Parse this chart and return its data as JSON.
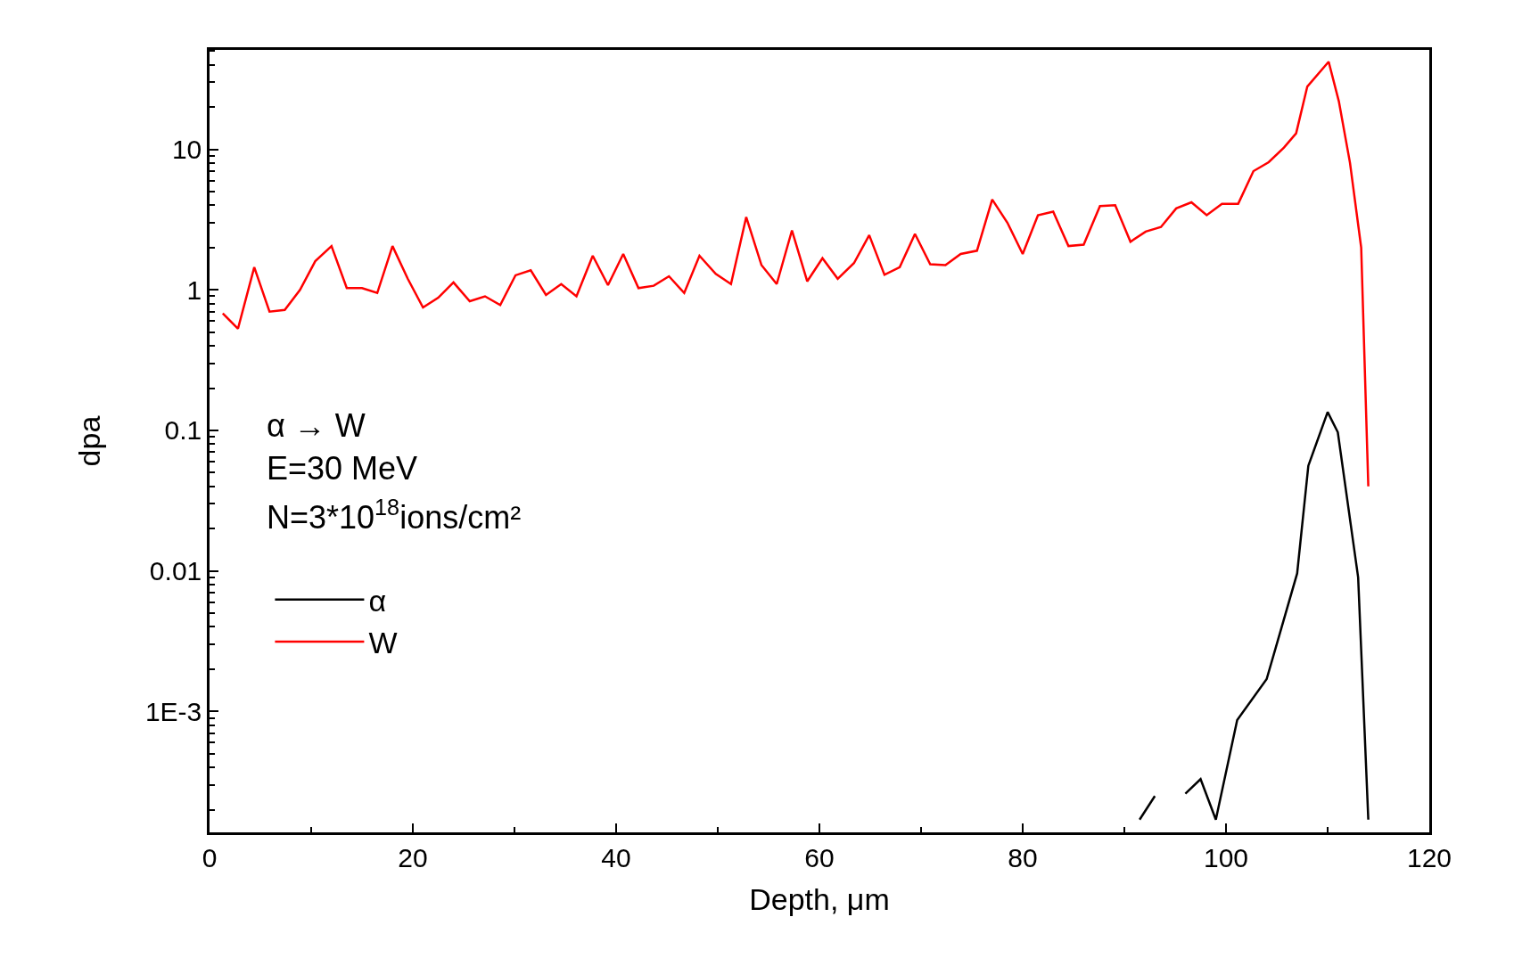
{
  "chart_data": {
    "type": "line",
    "xlabel": "Depth, μm",
    "ylabel": "dpa",
    "annotations": [
      "α → W",
      "E=30 MeV",
      "N=3*10$^{18}$ions/cm²"
    ],
    "log": "y",
    "xlim": [
      0,
      120
    ],
    "xticks": [
      0,
      20,
      40,
      60,
      80,
      100,
      120
    ],
    "ylim": [
      0.000138,
      51
    ],
    "yticks": [
      {
        "value": 0.001,
        "label": "1E-3"
      },
      0.01,
      0.1,
      1,
      10
    ],
    "legend": "left",
    "marker": "none",
    "line_style": "solid",
    "series": [
      {
        "name": "α",
        "color": "#000000",
        "x": [
          91.5,
          93.0,
          94.5,
          96.0,
          97.5,
          99.0,
          101.1,
          104.0,
          105.1,
          107.0,
          108.1,
          110.0,
          111.0,
          113.0,
          114.0
        ],
        "values": [
          0.00017,
          0.00025,
          null,
          0.00026,
          0.00033,
          0.00017,
          0.00087,
          0.0017,
          0.0032,
          0.0096,
          0.056,
          0.135,
          0.097,
          0.009,
          0.00017
        ]
      },
      {
        "name": "W",
        "color": "#ff0000",
        "x": [
          1.3,
          2.8,
          4.4,
          5.9,
          7.4,
          8.9,
          10.4,
          12.0,
          13.5,
          15.0,
          16.5,
          18.0,
          19.5,
          21.0,
          22.5,
          24.0,
          25.6,
          27.1,
          28.6,
          30.1,
          31.6,
          33.1,
          34.6,
          36.1,
          37.7,
          39.2,
          40.7,
          42.2,
          43.7,
          45.2,
          46.7,
          48.2,
          49.8,
          51.3,
          52.8,
          54.3,
          55.8,
          57.3,
          58.8,
          60.3,
          61.8,
          63.4,
          64.9,
          66.4,
          67.9,
          69.4,
          70.9,
          72.4,
          73.9,
          75.5,
          77.0,
          78.5,
          80.0,
          81.5,
          83.0,
          84.5,
          86.0,
          87.6,
          89.1,
          90.6,
          92.1,
          93.6,
          95.1,
          96.6,
          98.1,
          99.6,
          101.2,
          102.7,
          104.2,
          105.7,
          106.9,
          108.0,
          110.1,
          111.1,
          112.2,
          113.3,
          114.0
        ],
        "values": [
          0.68,
          0.53,
          1.45,
          0.7,
          0.72,
          1.0,
          1.6,
          2.05,
          1.03,
          1.03,
          0.95,
          2.05,
          1.2,
          0.75,
          0.88,
          1.13,
          0.83,
          0.9,
          0.78,
          1.27,
          1.38,
          0.92,
          1.1,
          0.9,
          1.75,
          1.08,
          1.8,
          1.03,
          1.07,
          1.25,
          0.95,
          1.75,
          1.3,
          1.1,
          3.3,
          1.5,
          1.1,
          2.65,
          1.15,
          1.68,
          1.2,
          1.55,
          2.45,
          1.28,
          1.45,
          2.5,
          1.52,
          1.5,
          1.8,
          1.9,
          4.4,
          3.0,
          1.8,
          3.4,
          3.6,
          2.05,
          2.1,
          3.95,
          4.0,
          2.2,
          2.6,
          2.8,
          3.8,
          4.2,
          3.4,
          4.1,
          4.1,
          7.0,
          8.1,
          10.3,
          13.0,
          28,
          42,
          22,
          8,
          2.0,
          0.04
        ]
      }
    ]
  }
}
